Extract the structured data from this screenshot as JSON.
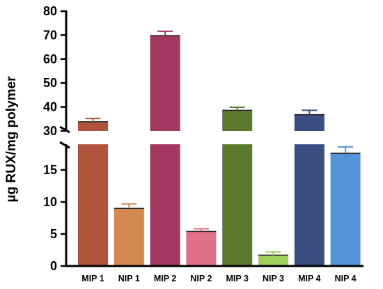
{
  "chart_data": {
    "type": "bar",
    "categories": [
      "MIP 1",
      "NIP 1",
      "MIP 2",
      "NIP 2",
      "MIP 3",
      "NIP 3",
      "MIP 4",
      "NIP 4"
    ],
    "values": [
      33.8,
      9.0,
      69.8,
      5.4,
      38.6,
      1.7,
      36.8,
      17.6
    ],
    "errors": [
      1.4,
      0.7,
      1.8,
      0.4,
      1.3,
      0.5,
      1.8,
      1.0
    ],
    "colors": [
      "#B0553C",
      "#D4874F",
      "#A23760",
      "#E07088",
      "#5B7A2B",
      "#9FD05A",
      "#3B4E82",
      "#5394D8"
    ],
    "title": "",
    "xlabel": "",
    "ylabel": "µg RUX/mg polymer",
    "axis_break": {
      "lower": [
        0,
        19
      ],
      "upper": [
        30,
        80
      ]
    },
    "lower_ticks": [
      "0",
      "5",
      "10",
      "15"
    ],
    "upper_ticks": [
      "30",
      "40",
      "50",
      "60",
      "70",
      "80"
    ],
    "grid": false,
    "legend": "none"
  }
}
